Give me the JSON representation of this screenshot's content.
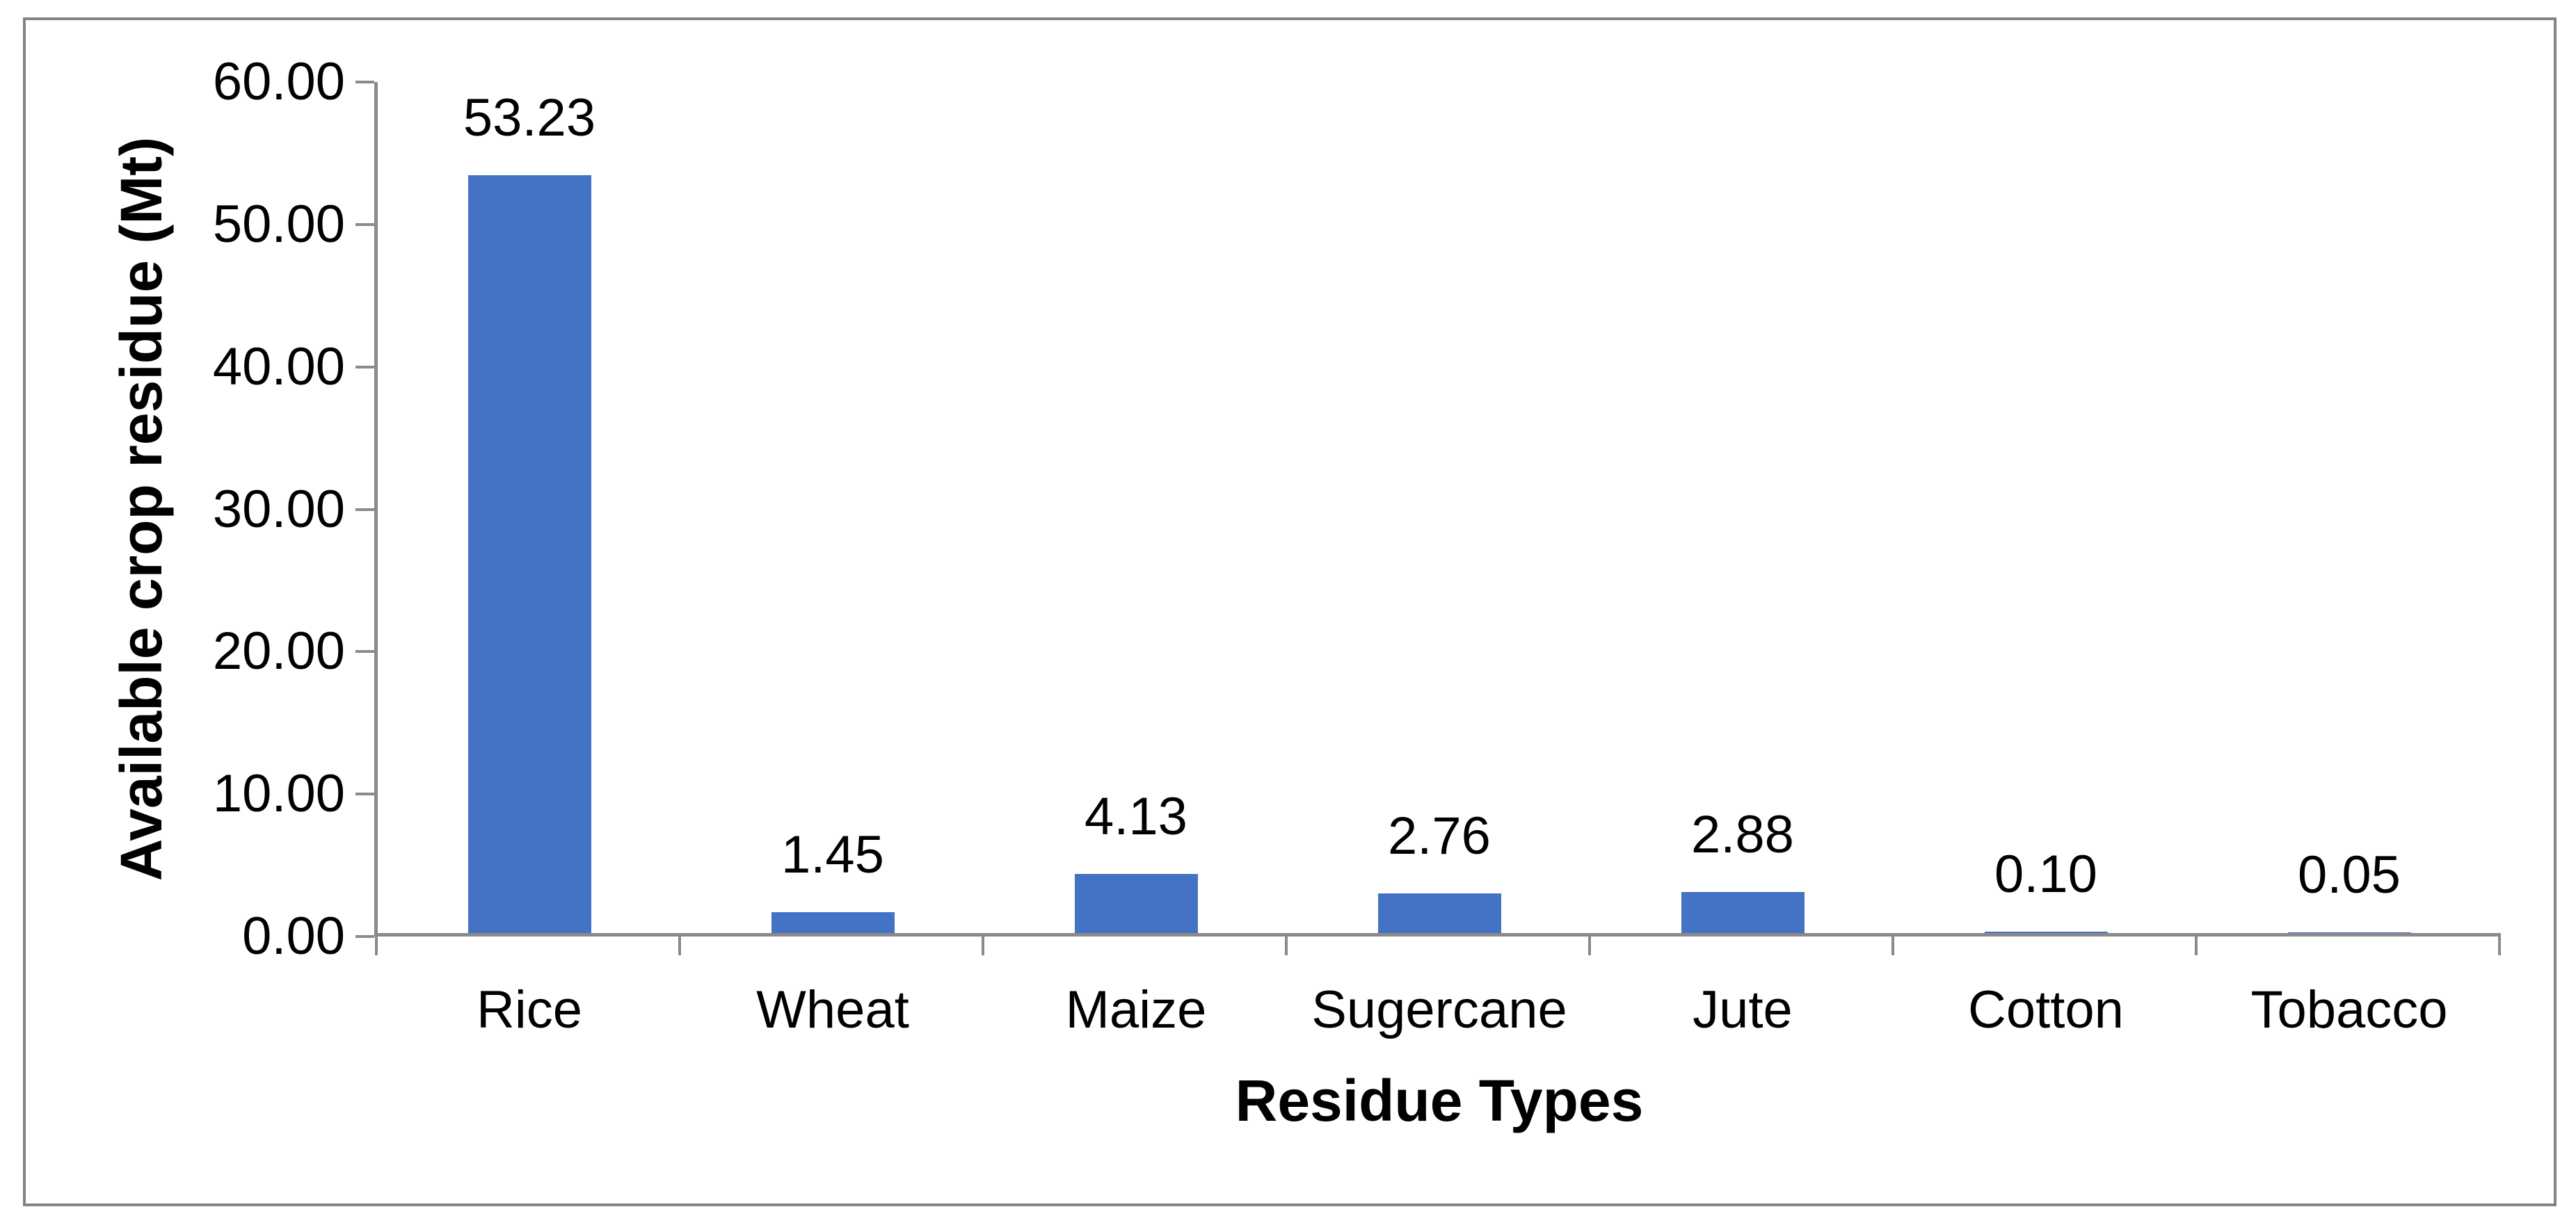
{
  "chart_data": {
    "type": "bar",
    "title": "",
    "categories": [
      "Rice",
      "Wheat",
      "Maize",
      "Sugercane",
      "Jute",
      "Cotton",
      "Tobacco"
    ],
    "values": [
      53.23,
      1.45,
      4.13,
      2.76,
      2.88,
      0.1,
      0.05
    ],
    "value_labels": [
      "53.23",
      "1.45",
      "4.13",
      "2.76",
      "2.88",
      "0.10",
      "0.05"
    ],
    "series_name": "Available crop residue",
    "xlabel": "Residue Types",
    "ylabel": "Available crop residue (Mt)",
    "ylim": [
      0,
      60
    ],
    "ytick_step": 10,
    "yticks": [
      {
        "value": 0,
        "label": "0.00"
      },
      {
        "value": 10,
        "label": "10.00"
      },
      {
        "value": 20,
        "label": "20.00"
      },
      {
        "value": 30,
        "label": "30.00"
      },
      {
        "value": 40,
        "label": "40.00"
      },
      {
        "value": 50,
        "label": "50.00"
      },
      {
        "value": 60,
        "label": "60.00"
      }
    ],
    "grid": false,
    "legend_position": "none",
    "data_label_position": "outside-end",
    "bar_color": "#4472C4",
    "axis_color": "#8A8A8A",
    "border_color": "#848484",
    "text_color": "#000000",
    "background_color": "#FFFFFF"
  }
}
